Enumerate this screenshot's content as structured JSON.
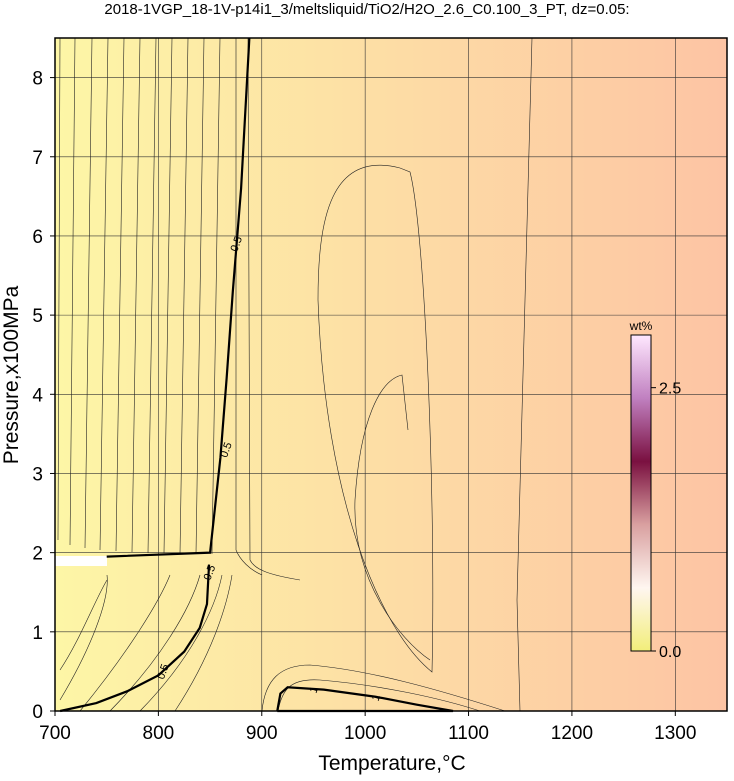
{
  "chart_data": {
    "type": "contour",
    "title": "2018-1VGP_18-1V-p14i1_3/meltsliquid/TiO2/H2O_2.6_C0.100_3_PT, dz=0.05:",
    "x_label": "Temperature,°C",
    "y_label": "Pressure,x100MPa",
    "xlim": [
      700,
      1350
    ],
    "ylim": [
      0,
      8.5
    ],
    "xticks": [
      700,
      800,
      900,
      1000,
      1100,
      1200,
      1300
    ],
    "yticks": [
      0,
      1,
      2,
      3,
      4,
      5,
      6,
      7,
      8
    ],
    "grid": true,
    "background": [
      "#fdf6a6",
      "#fdc4a4"
    ],
    "contours": [
      {
        "level": 0.5,
        "color": "#000000",
        "x": [
          705,
          740,
          770,
          800,
          825,
          840,
          847,
          849,
          null,
          750,
          850,
          855,
          860,
          866,
          872,
          880,
          888
        ],
        "y": [
          0,
          0.1,
          0.25,
          0.45,
          0.75,
          1.05,
          1.35,
          1.85,
          null,
          1.95,
          2.0,
          2.6,
          3.2,
          4.2,
          5.3,
          6.6,
          8.5
        ],
        "label_points": {
          "x": [
            804,
            849,
            865,
            875
          ],
          "y": [
            0.5,
            1.75,
            3.3,
            5.9
          ]
        }
      },
      {
        "level": 1,
        "color": "#000000",
        "x": [
          915,
          918,
          925,
          960,
          1010,
          1050,
          1085,
          1040,
          990,
          945,
          915
        ],
        "y": [
          0,
          0.22,
          0.3,
          0.27,
          0.18,
          0.08,
          0,
          0,
          0,
          0,
          0
        ],
        "label_points": {
          "x": [
            950,
            1010
          ],
          "y": [
            0.27,
            0.17
          ]
        }
      }
    ],
    "colorbar": {
      "label": "wt%",
      "lim": [
        0,
        3.0
      ],
      "ticks": [
        {
          "value": 0,
          "label": "0.0"
        },
        {
          "value": 2.5,
          "label": "2.5"
        }
      ],
      "colors": [
        "#f2ee7a",
        "#fff6f0",
        "#d9a0a0",
        "#7a1040",
        "#c080c0",
        "#ffe8ff"
      ]
    }
  }
}
